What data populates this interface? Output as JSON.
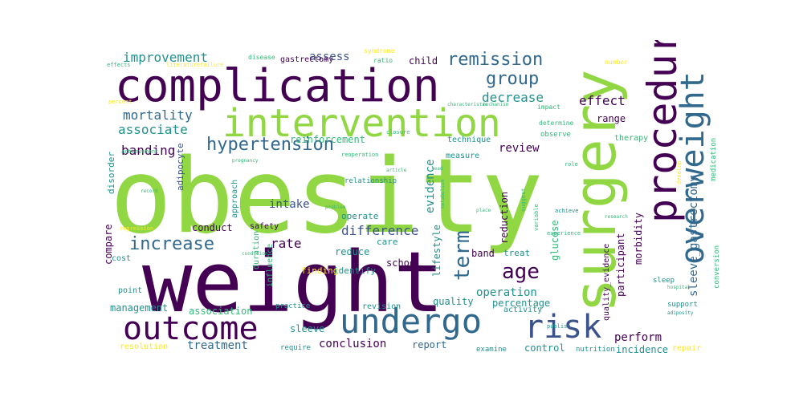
{
  "palette": {
    "dark_purple": "#440154",
    "indigo": "#3b528b",
    "blue": "#31688e",
    "teal": "#21918c",
    "green": "#35b779",
    "lime": "#90d743",
    "yellow": "#fde725"
  },
  "words": [
    {
      "text": "obesity",
      "color": "#90d743"
    },
    {
      "text": "weight",
      "color": "#440154"
    },
    {
      "text": "surgery",
      "color": "#90d743"
    },
    {
      "text": "complication",
      "color": "#440154"
    },
    {
      "text": "procedure",
      "color": "#440154"
    },
    {
      "text": "intervention",
      "color": "#90d743"
    },
    {
      "text": "overweight",
      "color": "#31688e"
    },
    {
      "text": "outcome",
      "color": "#440154"
    },
    {
      "text": "undergo",
      "color": "#31688e"
    },
    {
      "text": "risk",
      "color": "#3b528b"
    },
    {
      "text": "hypertension",
      "color": "#31688e"
    },
    {
      "text": "remission",
      "color": "#31688e"
    },
    {
      "text": "increase",
      "color": "#31688e"
    },
    {
      "text": "group",
      "color": "#31688e"
    },
    {
      "text": "age",
      "color": "#440154"
    },
    {
      "text": "term",
      "color": "#31688e"
    },
    {
      "text": "mortality",
      "color": "#31688e"
    },
    {
      "text": "improvement",
      "color": "#21918c"
    },
    {
      "text": "associate",
      "color": "#21918c"
    },
    {
      "text": "banding",
      "color": "#440154"
    },
    {
      "text": "rate",
      "color": "#440154"
    },
    {
      "text": "difference",
      "color": "#3b528b"
    },
    {
      "text": "intake",
      "color": "#3b528b"
    },
    {
      "text": "assess",
      "color": "#3b528b"
    },
    {
      "text": "decrease",
      "color": "#21918c"
    },
    {
      "text": "effect",
      "color": "#440154"
    },
    {
      "text": "review",
      "color": "#440154"
    },
    {
      "text": "evidence",
      "color": "#21918c"
    },
    {
      "text": "operation",
      "color": "#21918c"
    },
    {
      "text": "conclusion",
      "color": "#440154"
    },
    {
      "text": "treatment",
      "color": "#31688e"
    },
    {
      "text": "association",
      "color": "#35b779"
    },
    {
      "text": "perform",
      "color": "#440154"
    },
    {
      "text": "band",
      "color": "#440154"
    },
    {
      "text": "compare",
      "color": "#440154"
    },
    {
      "text": "sleeve_gastrectomy",
      "color": "#31688e"
    },
    {
      "text": "glucose",
      "color": "#35b779"
    },
    {
      "text": "reduction",
      "color": "#440154"
    },
    {
      "text": "lifestyle",
      "color": "#21918c"
    },
    {
      "text": "quality",
      "color": "#21918c"
    },
    {
      "text": "percentage",
      "color": "#21918c"
    },
    {
      "text": "report",
      "color": "#31688e"
    },
    {
      "text": "control",
      "color": "#21918c"
    },
    {
      "text": "incidence",
      "color": "#21918c"
    },
    {
      "text": "management",
      "color": "#21918c"
    },
    {
      "text": "sleeve",
      "color": "#21918c"
    },
    {
      "text": "child",
      "color": "#440154"
    },
    {
      "text": "gastrectomy",
      "color": "#440154"
    },
    {
      "text": "range",
      "color": "#440154"
    },
    {
      "text": "participant",
      "color": "#440154"
    },
    {
      "text": "morbidity",
      "color": "#440154"
    },
    {
      "text": "quality_evidence",
      "color": "#440154"
    },
    {
      "text": "school",
      "color": "#440154"
    },
    {
      "text": "reduce",
      "color": "#21918c"
    },
    {
      "text": "conduct",
      "color": "#440154"
    },
    {
      "text": "safety",
      "color": "#440154"
    },
    {
      "text": "reinforcement",
      "color": "#35b779"
    },
    {
      "text": "technique",
      "color": "#21918c"
    },
    {
      "text": "measure",
      "color": "#21918c"
    },
    {
      "text": "disorder",
      "color": "#21918c"
    },
    {
      "text": "adipocyte",
      "color": "#3b528b"
    },
    {
      "text": "approach",
      "color": "#21918c"
    },
    {
      "text": "relationship",
      "color": "#21918c"
    },
    {
      "text": "operate",
      "color": "#21918c"
    },
    {
      "text": "care",
      "color": "#21918c"
    },
    {
      "text": "identify",
      "color": "#21918c"
    },
    {
      "text": "finding",
      "color": "#fde725"
    },
    {
      "text": "treat",
      "color": "#21918c"
    },
    {
      "text": "duration",
      "color": "#35b779"
    },
    {
      "text": "influence",
      "color": "#35b779"
    },
    {
      "text": "practice",
      "color": "#21918c"
    },
    {
      "text": "point",
      "color": "#21918c"
    },
    {
      "text": "cost",
      "color": "#21918c"
    },
    {
      "text": "revision",
      "color": "#21918c"
    },
    {
      "text": "activity",
      "color": "#21918c"
    },
    {
      "text": "resolution",
      "color": "#fde725"
    },
    {
      "text": "require",
      "color": "#21918c"
    },
    {
      "text": "examine",
      "color": "#21918c"
    },
    {
      "text": "nutrition",
      "color": "#21918c"
    },
    {
      "text": "repair",
      "color": "#fde725"
    },
    {
      "text": "support",
      "color": "#21918c"
    },
    {
      "text": "sleep",
      "color": "#21918c"
    },
    {
      "text": "conversion",
      "color": "#35b779"
    },
    {
      "text": "medication",
      "color": "#35b779"
    },
    {
      "text": "therapy",
      "color": "#35b779"
    },
    {
      "text": "observe",
      "color": "#35b779"
    },
    {
      "text": "determine",
      "color": "#35b779"
    },
    {
      "text": "impact",
      "color": "#35b779"
    },
    {
      "text": "number",
      "color": "#fde725"
    },
    {
      "text": "syndrome",
      "color": "#fde725"
    },
    {
      "text": "ratio",
      "color": "#35b779"
    },
    {
      "text": "disease",
      "color": "#35b779"
    },
    {
      "text": "literature",
      "color": "#fde725"
    },
    {
      "text": "failure",
      "color": "#fde725"
    },
    {
      "text": "effects",
      "color": "#35b779"
    },
    {
      "text": "percent",
      "color": "#fde725"
    },
    {
      "text": "characteristic",
      "color": "#35b779"
    },
    {
      "text": "mechanism",
      "color": "#35b779"
    },
    {
      "text": "closure",
      "color": "#35b779"
    },
    {
      "text": "reoperation",
      "color": "#35b779"
    },
    {
      "text": "achievement",
      "color": "#35b779"
    },
    {
      "text": "pregnancy",
      "color": "#35b779"
    },
    {
      "text": "regression",
      "color": "#fde725"
    },
    {
      "text": "condition",
      "color": "#35b779"
    },
    {
      "text": "experience",
      "color": "#35b779"
    },
    {
      "text": "achieve",
      "color": "#21918c"
    },
    {
      "text": "variable",
      "color": "#35b779"
    },
    {
      "text": "suggest",
      "color": "#35b779"
    },
    {
      "text": "publish",
      "color": "#21918c"
    },
    {
      "text": "hospital",
      "color": "#35b779"
    },
    {
      "text": "adiposity",
      "color": "#21918c"
    },
    {
      "text": "research",
      "color": "#35b779"
    },
    {
      "text": "role",
      "color": "#35b779"
    },
    {
      "text": "lead",
      "color": "#35b779"
    },
    {
      "text": "article",
      "color": "#35b779"
    },
    {
      "text": "metabolism",
      "color": "#35b779"
    },
    {
      "text": "place",
      "color": "#35b779"
    },
    {
      "text": "problem",
      "color": "#35b779"
    },
    {
      "text": "record",
      "color": "#35b779"
    },
    {
      "text": "develop",
      "color": "#fde725"
    }
  ]
}
